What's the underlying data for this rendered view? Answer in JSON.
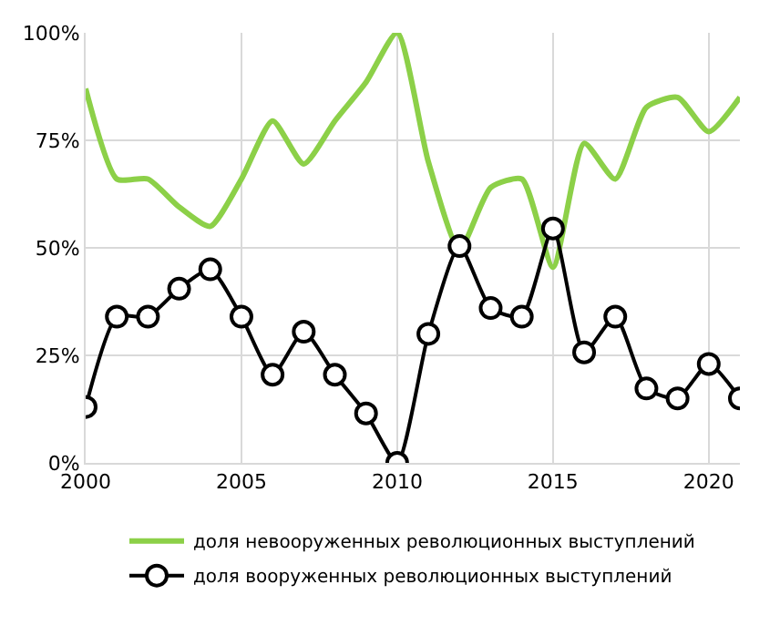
{
  "chart_data": {
    "type": "line",
    "x": [
      2000,
      2001,
      2002,
      2003,
      2004,
      2005,
      2006,
      2007,
      2008,
      2009,
      2010,
      2011,
      2012,
      2013,
      2014,
      2015,
      2016,
      2017,
      2018,
      2019,
      2020,
      2021
    ],
    "series": [
      {
        "name": "доля невооруженных революционных выступлений",
        "color": "#8cd048",
        "marker": "none",
        "values": [
          87,
          66,
          66,
          59.5,
          55,
          66,
          79.5,
          69.5,
          79.5,
          88.5,
          100,
          70,
          49.6,
          64,
          66,
          45.5,
          74.3,
          66,
          82.7,
          85,
          77,
          85
        ]
      },
      {
        "name": "доля вооруженных революционных выступлений",
        "color": "#000000",
        "marker": "circle",
        "values": [
          13,
          34,
          34,
          40.5,
          45,
          34,
          20.5,
          30.5,
          20.5,
          11.5,
          0,
          30,
          50.4,
          36,
          34,
          54.5,
          25.7,
          34,
          17.3,
          15,
          23,
          15
        ]
      }
    ],
    "xlim": [
      2000,
      2021
    ],
    "xticks": [
      2000,
      2005,
      2010,
      2015,
      2020
    ],
    "ylim": [
      0,
      100
    ],
    "yticks": [
      {
        "value": 0,
        "label": "0%"
      },
      {
        "value": 25,
        "label": "25%"
      },
      {
        "value": 50,
        "label": "50%"
      },
      {
        "value": 75,
        "label": "75%"
      },
      {
        "value": 100,
        "label": "100%"
      }
    ],
    "grid": true,
    "legend": "bottom"
  }
}
